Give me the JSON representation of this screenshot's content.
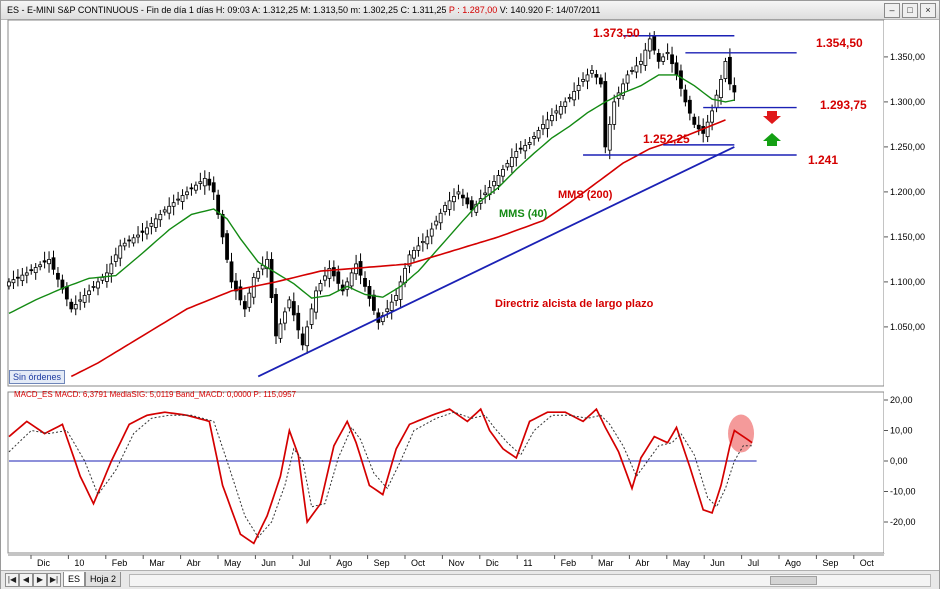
{
  "window": {
    "title_parts": [
      {
        "text": "ES - E-MINI S&P CONTINUOUS - Fin de día 1 días  H: 09:03  A: 1.312,25  M: 1.313,50  m: 1.302,25  C: 1.311,25  ",
        "color": ""
      },
      {
        "text": "P : 1.287,00",
        "color": "#d40000"
      },
      {
        "text": "  V: 140.920  F: 14/07/2011",
        "color": ""
      }
    ],
    "buttons": {
      "minimize": "–",
      "maximize": "□",
      "close": "×"
    }
  },
  "badge": {
    "sin_ordenes": "Sin órdenes"
  },
  "bottom": {
    "nav": [
      "|◀",
      "◀",
      "▶",
      "▶|"
    ],
    "tabs": [
      {
        "label": "ES",
        "active": true
      },
      {
        "label": "Hoja 2",
        "active": false
      }
    ]
  },
  "colors": {
    "price": "#000000",
    "mms40": "#138a13",
    "mms200": "#d40000",
    "trendline": "#1b21b5",
    "levels": "#1b21b5",
    "labels_red": "#d40000",
    "macd": "#d40000",
    "signal": "#333333",
    "zero_line": "#1b21b5",
    "highlight": "#f07878",
    "arrow_down": "#e0181a",
    "arrow_up": "#14a014"
  },
  "chart_data": [
    {
      "type": "line",
      "subtype": "candlestick",
      "title": "ES - E-MINI S&P CONTINUOUS",
      "x_labels": [
        "Dic",
        "10",
        "Feb",
        "Mar",
        "Abr",
        "May",
        "Jun",
        "Jul",
        "Ago",
        "Sep",
        "Oct",
        "Nov",
        "Dic",
        "11",
        "Feb",
        "Mar",
        "Abr",
        "May",
        "Jun",
        "Jul",
        "Ago",
        "Sep",
        "Oct"
      ],
      "y_ticks": [
        "1.050,00",
        "1.100,00",
        "1.150,00",
        "1.200,00",
        "1.250,00",
        "1.300,00",
        "1.350,00"
      ],
      "ylim": [
        995,
        1395
      ],
      "series": [
        {
          "name": "Precio",
          "anchors": [
            [
              0,
              1100
            ],
            [
              4,
              1110
            ],
            [
              9,
              1125
            ],
            [
              14,
              1070
            ],
            [
              18,
              1090
            ],
            [
              22,
              1110
            ],
            [
              25,
              1140
            ],
            [
              30,
              1155
            ],
            [
              35,
              1180
            ],
            [
              40,
              1200
            ],
            [
              44,
              1215
            ],
            [
              46,
              1200
            ],
            [
              48,
              1150
            ],
            [
              50,
              1100
            ],
            [
              53,
              1070
            ],
            [
              55,
              1105
            ],
            [
              58,
              1125
            ],
            [
              60,
              1040
            ],
            [
              63,
              1080
            ],
            [
              66,
              1030
            ],
            [
              69,
              1090
            ],
            [
              72,
              1115
            ],
            [
              75,
              1090
            ],
            [
              78,
              1120
            ],
            [
              80,
              1095
            ],
            [
              83,
              1055
            ],
            [
              87,
              1085
            ],
            [
              90,
              1130
            ],
            [
              94,
              1150
            ],
            [
              98,
              1185
            ],
            [
              101,
              1200
            ],
            [
              104,
              1180
            ],
            [
              108,
              1205
            ],
            [
              111,
              1225
            ],
            [
              114,
              1245
            ],
            [
              117,
              1255
            ],
            [
              120,
              1275
            ],
            [
              123,
              1290
            ],
            [
              126,
              1305
            ],
            [
              129,
              1325
            ],
            [
              131,
              1335
            ],
            [
              133,
              1320
            ],
            [
              134,
              1250
            ],
            [
              136,
              1300
            ],
            [
              139,
              1330
            ],
            [
              142,
              1345
            ],
            [
              144,
              1370
            ],
            [
              146,
              1345
            ],
            [
              148,
              1355
            ],
            [
              150,
              1330
            ],
            [
              152,
              1300
            ],
            [
              154,
              1275
            ],
            [
              156,
              1265
            ],
            [
              158,
              1290
            ],
            [
              160,
              1325
            ],
            [
              161,
              1345
            ],
            [
              162,
              1320
            ],
            [
              163,
              1311
            ]
          ]
        },
        {
          "name": "MMS (40)",
          "anchors": [
            [
              0,
              1065
            ],
            [
              6,
              1080
            ],
            [
              12,
              1093
            ],
            [
              18,
              1104
            ],
            [
              24,
              1107
            ],
            [
              30,
              1132
            ],
            [
              36,
              1158
            ],
            [
              41,
              1175
            ],
            [
              46,
              1181
            ],
            [
              49,
              1170
            ],
            [
              52,
              1148
            ],
            [
              56,
              1122
            ],
            [
              60,
              1110
            ],
            [
              64,
              1098
            ],
            [
              68,
              1082
            ],
            [
              72,
              1085
            ],
            [
              76,
              1095
            ],
            [
              80,
              1086
            ],
            [
              84,
              1083
            ],
            [
              88,
              1095
            ],
            [
              92,
              1112
            ],
            [
              97,
              1140
            ],
            [
              102,
              1168
            ],
            [
              106,
              1190
            ],
            [
              110,
              1205
            ],
            [
              114,
              1225
            ],
            [
              118,
              1243
            ],
            [
              122,
              1260
            ],
            [
              126,
              1273
            ],
            [
              130,
              1288
            ],
            [
              134,
              1300
            ],
            [
              138,
              1310
            ],
            [
              142,
              1318
            ],
            [
              146,
              1330
            ],
            [
              150,
              1330
            ],
            [
              154,
              1318
            ],
            [
              158,
              1303
            ],
            [
              161,
              1300
            ],
            [
              163,
              1302
            ]
          ]
        },
        {
          "name": "MMS (200)",
          "anchors": [
            [
              14,
              995
            ],
            [
              20,
              1010
            ],
            [
              30,
              1040
            ],
            [
              40,
              1070
            ],
            [
              50,
              1090
            ],
            [
              60,
              1100
            ],
            [
              70,
              1112
            ],
            [
              80,
              1116
            ],
            [
              90,
              1120
            ],
            [
              100,
              1135
            ],
            [
              110,
              1150
            ],
            [
              120,
              1168
            ],
            [
              126,
              1188
            ],
            [
              132,
              1210
            ],
            [
              138,
              1232
            ],
            [
              144,
              1248
            ],
            [
              150,
              1258
            ],
            [
              156,
              1270
            ],
            [
              161,
              1280
            ]
          ]
        },
        {
          "name": "Directriz alcista de largo plazo",
          "line": [
            [
              56,
              995
            ],
            [
              163,
              1250
            ]
          ]
        }
      ],
      "levels": [
        {
          "label": "1.373,50",
          "value": 1373.5,
          "from": 138,
          "to": 163
        },
        {
          "label": "1.354,50",
          "value": 1354.5,
          "from": 152,
          "to": 177
        },
        {
          "label": "1.293,75",
          "value": 1293.75,
          "from": 156,
          "to": 177
        },
        {
          "label": "1.252,25",
          "value": 1252.25,
          "from": 147,
          "to": 163
        },
        {
          "label": "1.241",
          "value": 1241,
          "from": 129,
          "to": 177
        }
      ],
      "annotations": [
        "MMS (40)",
        "MMS (200)",
        "Directriz alcista de largo plazo"
      ]
    },
    {
      "type": "line",
      "title": "MACD_ES",
      "header_parts": [
        "MACD_ES  MACD: 6,3791  MediaSIG: 5,0119  Band_MACD: 0,0000  P: 115,0957"
      ],
      "y_ticks": [
        "20,00",
        "10,00",
        "0,00",
        "-10,00",
        "-20,00"
      ],
      "ylim": [
        -28,
        22
      ],
      "series": [
        {
          "name": "MACD",
          "anchors": [
            [
              0,
              8
            ],
            [
              4,
              13
            ],
            [
              8,
              9
            ],
            [
              12,
              12
            ],
            [
              16,
              -5
            ],
            [
              19,
              -14
            ],
            [
              23,
              0
            ],
            [
              27,
              12
            ],
            [
              31,
              15
            ],
            [
              35,
              16
            ],
            [
              40,
              15
            ],
            [
              45,
              13
            ],
            [
              48,
              -8
            ],
            [
              52,
              -24
            ],
            [
              55,
              -27
            ],
            [
              58,
              -18
            ],
            [
              61,
              -5
            ],
            [
              63,
              10
            ],
            [
              65,
              2
            ],
            [
              67,
              -20
            ],
            [
              70,
              -14
            ],
            [
              73,
              5
            ],
            [
              76,
              13
            ],
            [
              78,
              6
            ],
            [
              81,
              -8
            ],
            [
              84,
              -11
            ],
            [
              87,
              4
            ],
            [
              90,
              12
            ],
            [
              95,
              15
            ],
            [
              99,
              17
            ],
            [
              103,
              13
            ],
            [
              106,
              17
            ],
            [
              108,
              10
            ],
            [
              111,
              4
            ],
            [
              114,
              1
            ],
            [
              117,
              13
            ],
            [
              121,
              16
            ],
            [
              125,
              16
            ],
            [
              129,
              13
            ],
            [
              132,
              17
            ],
            [
              134,
              11
            ],
            [
              137,
              3
            ],
            [
              140,
              -9
            ],
            [
              142,
              1
            ],
            [
              145,
              8
            ],
            [
              148,
              6
            ],
            [
              150,
              11
            ],
            [
              153,
              -2
            ],
            [
              156,
              -16
            ],
            [
              158,
              -17
            ],
            [
              160,
              -8
            ],
            [
              162,
              5
            ],
            [
              163,
              10
            ],
            [
              165,
              8
            ],
            [
              167,
              6
            ]
          ]
        },
        {
          "name": "MediaSIG",
          "anchors": [
            [
              0,
              3
            ],
            [
              5,
              10
            ],
            [
              9,
              9
            ],
            [
              13,
              10
            ],
            [
              17,
              0
            ],
            [
              20,
              -11
            ],
            [
              24,
              -3
            ],
            [
              28,
              9
            ],
            [
              32,
              14
            ],
            [
              36,
              15
            ],
            [
              41,
              15
            ],
            [
              46,
              13
            ],
            [
              49,
              0
            ],
            [
              53,
              -18
            ],
            [
              56,
              -25
            ],
            [
              59,
              -20
            ],
            [
              62,
              -8
            ],
            [
              64,
              4
            ],
            [
              66,
              0
            ],
            [
              68,
              -15
            ],
            [
              71,
              -14
            ],
            [
              74,
              1
            ],
            [
              77,
              11
            ],
            [
              79,
              7
            ],
            [
              82,
              -4
            ],
            [
              85,
              -9
            ],
            [
              88,
              0
            ],
            [
              91,
              10
            ],
            [
              96,
              14
            ],
            [
              100,
              16
            ],
            [
              104,
              14
            ],
            [
              107,
              15
            ],
            [
              109,
              11
            ],
            [
              112,
              6
            ],
            [
              115,
              2
            ],
            [
              118,
              10
            ],
            [
              122,
              15
            ],
            [
              126,
              15
            ],
            [
              130,
              14
            ],
            [
              133,
              15
            ],
            [
              135,
              12
            ],
            [
              138,
              5
            ],
            [
              141,
              -5
            ],
            [
              143,
              -1
            ],
            [
              146,
              5
            ],
            [
              149,
              6
            ],
            [
              151,
              9
            ],
            [
              154,
              2
            ],
            [
              157,
              -12
            ],
            [
              159,
              -15
            ],
            [
              161,
              -9
            ],
            [
              163,
              0
            ],
            [
              165,
              5
            ],
            [
              167,
              5
            ]
          ]
        }
      ],
      "zero_line": 0
    }
  ]
}
